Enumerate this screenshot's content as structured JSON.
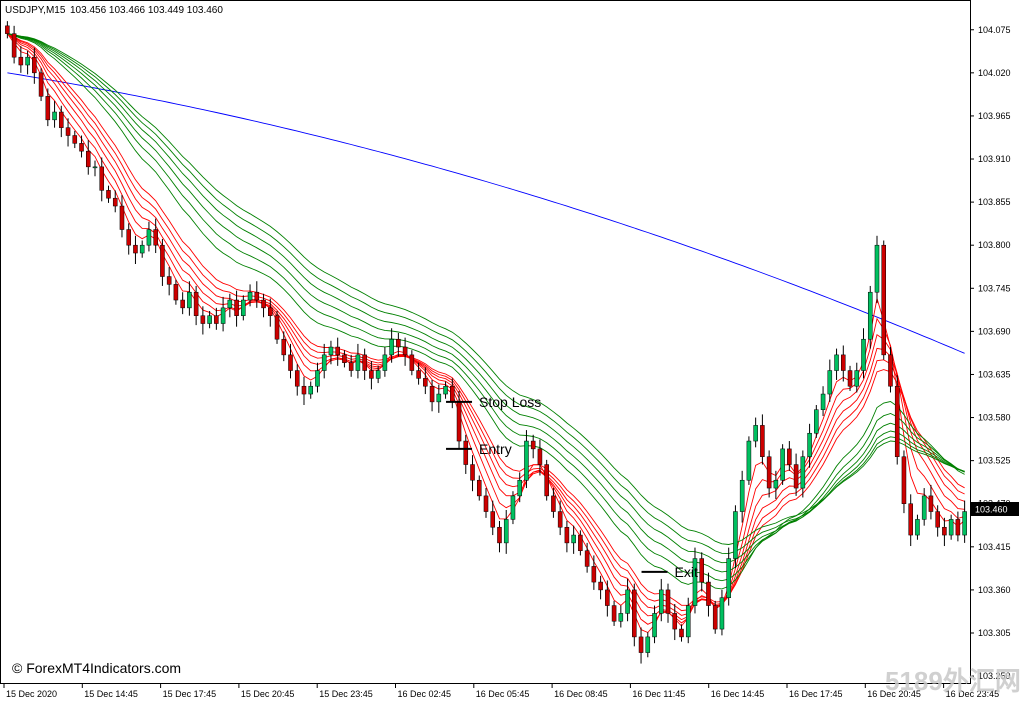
{
  "header": {
    "symbol": "USDJPY,M15",
    "ohlc": "103.456 103.466 103.449 103.460"
  },
  "watermark": {
    "copyright": "© ForexMT4Indicators.com",
    "logo": "5189外汇网"
  },
  "chart_data": {
    "type": "candlestick",
    "y_ticks": [
      "104.075",
      "104.020",
      "103.965",
      "103.910",
      "103.855",
      "103.800",
      "103.745",
      "103.690",
      "103.635",
      "103.580",
      "103.525",
      "103.470",
      "103.415",
      "103.360",
      "103.305",
      "103.250"
    ],
    "ylim": [
      103.245,
      104.09
    ],
    "x_ticks": [
      "15 Dec 2020",
      "15 Dec 14:45",
      "15 Dec 17:45",
      "15 Dec 20:45",
      "15 Dec 23:45",
      "16 Dec 02:45",
      "16 Dec 05:45",
      "16 Dec 08:45",
      "16 Dec 11:45",
      "16 Dec 14:45",
      "16 Dec 17:45",
      "16 Dec 20:45",
      "16 Dec 23:45"
    ],
    "current_price": "103.460",
    "current_price_value": 103.46,
    "close": [
      104.07,
      104.04,
      104.03,
      104.04,
      104.02,
      103.99,
      103.96,
      103.97,
      103.95,
      103.94,
      103.93,
      103.92,
      103.9,
      103.9,
      103.87,
      103.86,
      103.85,
      103.82,
      103.8,
      103.79,
      103.8,
      103.82,
      103.8,
      103.76,
      103.75,
      103.73,
      103.72,
      103.74,
      103.71,
      103.7,
      103.71,
      103.7,
      103.72,
      103.73,
      103.71,
      103.73,
      103.74,
      103.73,
      103.72,
      103.71,
      103.68,
      103.66,
      103.64,
      103.62,
      103.61,
      103.62,
      103.64,
      103.66,
      103.67,
      103.66,
      103.65,
      103.64,
      103.66,
      103.64,
      103.63,
      103.64,
      103.66,
      103.68,
      103.67,
      103.66,
      103.64,
      103.63,
      103.62,
      103.6,
      103.61,
      103.62,
      103.6,
      103.55,
      103.52,
      103.5,
      103.48,
      103.46,
      103.44,
      103.42,
      103.45,
      103.48,
      103.5,
      103.55,
      103.54,
      103.52,
      103.48,
      103.46,
      103.44,
      103.42,
      103.43,
      103.41,
      103.39,
      103.37,
      103.36,
      103.34,
      103.32,
      103.33,
      103.36,
      103.3,
      103.28,
      103.3,
      103.33,
      103.36,
      103.33,
      103.31,
      103.3,
      103.34,
      103.4,
      103.37,
      103.34,
      103.31,
      103.35,
      103.4,
      103.46,
      103.5,
      103.55,
      103.57,
      103.53,
      103.49,
      103.5,
      103.54,
      103.52,
      103.49,
      103.53,
      103.56,
      103.59,
      103.61,
      103.64,
      103.66,
      103.64,
      103.62,
      103.64,
      103.68,
      103.74,
      103.8,
      103.66,
      103.62,
      103.53,
      103.47,
      103.43,
      103.45,
      103.48,
      103.46,
      103.44,
      103.43,
      103.45,
      103.43,
      103.46
    ],
    "annotations": [
      {
        "label": "Stop Loss",
        "index": 67,
        "price": 103.6
      },
      {
        "label": "Entry",
        "index": 67,
        "price": 103.54
      },
      {
        "label": "Exit",
        "index": 96,
        "price": 103.383
      }
    ],
    "series": [
      {
        "color": "#0000ff",
        "start": 104.02,
        "end": 103.662
      },
      {
        "color": "#ff0000",
        "lag": 4
      },
      {
        "color": "#ff0000",
        "lag": 6
      },
      {
        "color": "#ff0000",
        "lag": 8
      },
      {
        "color": "#ff0000",
        "lag": 10
      },
      {
        "color": "#ff0000",
        "lag": 12
      },
      {
        "color": "#ff0000",
        "lag": 14
      },
      {
        "color": "#008000",
        "lag": 22
      },
      {
        "color": "#008000",
        "lag": 26
      },
      {
        "color": "#008000",
        "lag": 30
      },
      {
        "color": "#008000",
        "lag": 34
      },
      {
        "color": "#008000",
        "lag": 38
      },
      {
        "color": "#008000",
        "lag": 42
      }
    ],
    "colors": {
      "bull": "#00c060",
      "bear": "#cc0000",
      "wick": "#000000",
      "price_bg": "#000000",
      "price_text": "#ffffff"
    }
  }
}
